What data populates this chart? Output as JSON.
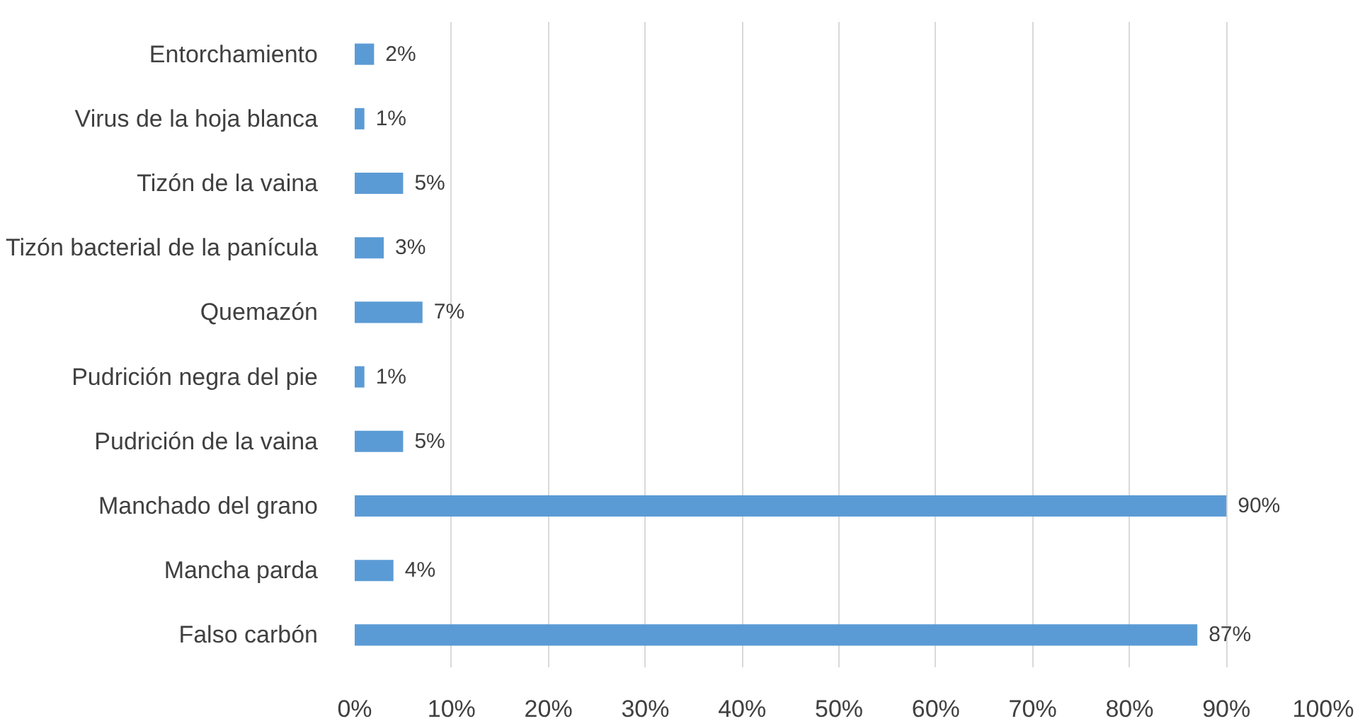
{
  "chart_data": {
    "type": "bar",
    "orientation": "horizontal",
    "categories": [
      "Entorchamiento",
      "Virus de la hoja blanca",
      "Tizón de la vaina",
      "Tizón bacterial de la panícula",
      "Quemazón",
      "Pudrición negra del pie",
      "Pudrición de la vaina",
      "Manchado del grano",
      "Mancha parda",
      "Falso carbón"
    ],
    "values": [
      2,
      1,
      5,
      3,
      7,
      1,
      5,
      90,
      4,
      87
    ],
    "value_labels": [
      "2%",
      "1%",
      "5%",
      "3%",
      "7%",
      "1%",
      "5%",
      "90%",
      "4%",
      "87%"
    ],
    "color": "#5b9bd5",
    "xlim": [
      0,
      100
    ],
    "xticks": [
      {
        "value": 0,
        "label": "0%"
      },
      {
        "value": 10,
        "label": "10%"
      },
      {
        "value": 20,
        "label": "20%"
      },
      {
        "value": 30,
        "label": "30%"
      },
      {
        "value": 40,
        "label": "40%"
      },
      {
        "value": 50,
        "label": "50%"
      },
      {
        "value": 60,
        "label": "60%"
      },
      {
        "value": 70,
        "label": "70%"
      },
      {
        "value": 80,
        "label": "80%"
      },
      {
        "value": 90,
        "label": "90%"
      },
      {
        "value": 100,
        "label": "100%"
      }
    ],
    "grid": "x"
  }
}
